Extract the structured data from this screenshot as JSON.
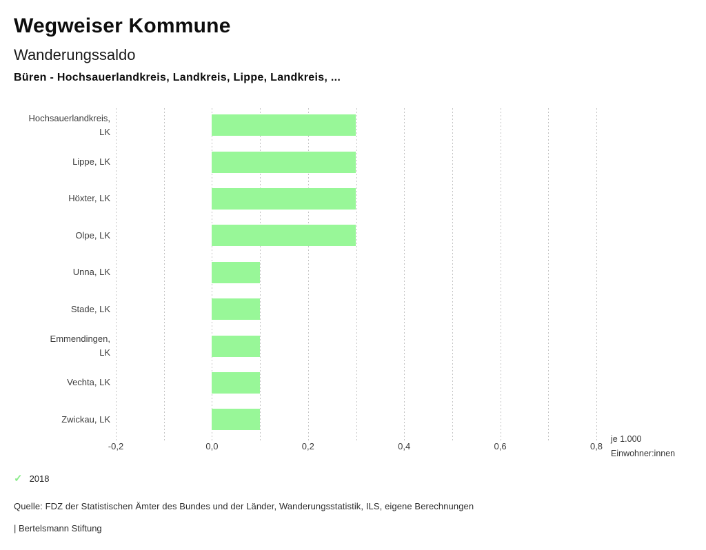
{
  "header": {
    "title": "Wegweiser Kommune"
  },
  "chart_data": {
    "type": "bar",
    "orientation": "horizontal",
    "title": "Wanderungssaldo",
    "subtitle": "Büren - Hochsauerlandkreis, Landkreis, Lippe, Landkreis, ...",
    "categories": [
      "Hochsauerlandkreis,\nLK",
      "Lippe, LK",
      "Höxter, LK",
      "Olpe, LK",
      "Unna, LK",
      "Stade, LK",
      "Emmendingen,\nLK",
      "Vechta, LK",
      "Zwickau, LK"
    ],
    "series": [
      {
        "name": "2018",
        "values": [
          0.3,
          0.3,
          0.3,
          0.3,
          0.1,
          0.1,
          0.1,
          0.1,
          0.1
        ]
      }
    ],
    "xlabel": "je 1.000\nEinwohner:innen",
    "xlim": [
      -0.2,
      0.8
    ],
    "grid": true,
    "grid_step": 0.1,
    "x_ticks": [
      {
        "value": -0.2,
        "label": "-0,2"
      },
      {
        "value": 0.0,
        "label": "0,0"
      },
      {
        "value": 0.2,
        "label": "0,2"
      },
      {
        "value": 0.4,
        "label": "0,4"
      },
      {
        "value": 0.6,
        "label": "0,6"
      },
      {
        "value": 0.8,
        "label": "0,8"
      }
    ],
    "bar_color": "#98f798",
    "legend_position": "bottom-left"
  },
  "legend": {
    "check_icon": "✓"
  },
  "footer": {
    "source": "Quelle: FDZ der Statistischen Ämter des Bundes und der Länder, Wanderungsstatistik, ILS, eigene Berechnungen",
    "branding": "| Bertelsmann Stiftung"
  },
  "colors": {
    "bar": "#98f798",
    "check": "#8dec8d",
    "grid": "#c3c3c3"
  }
}
